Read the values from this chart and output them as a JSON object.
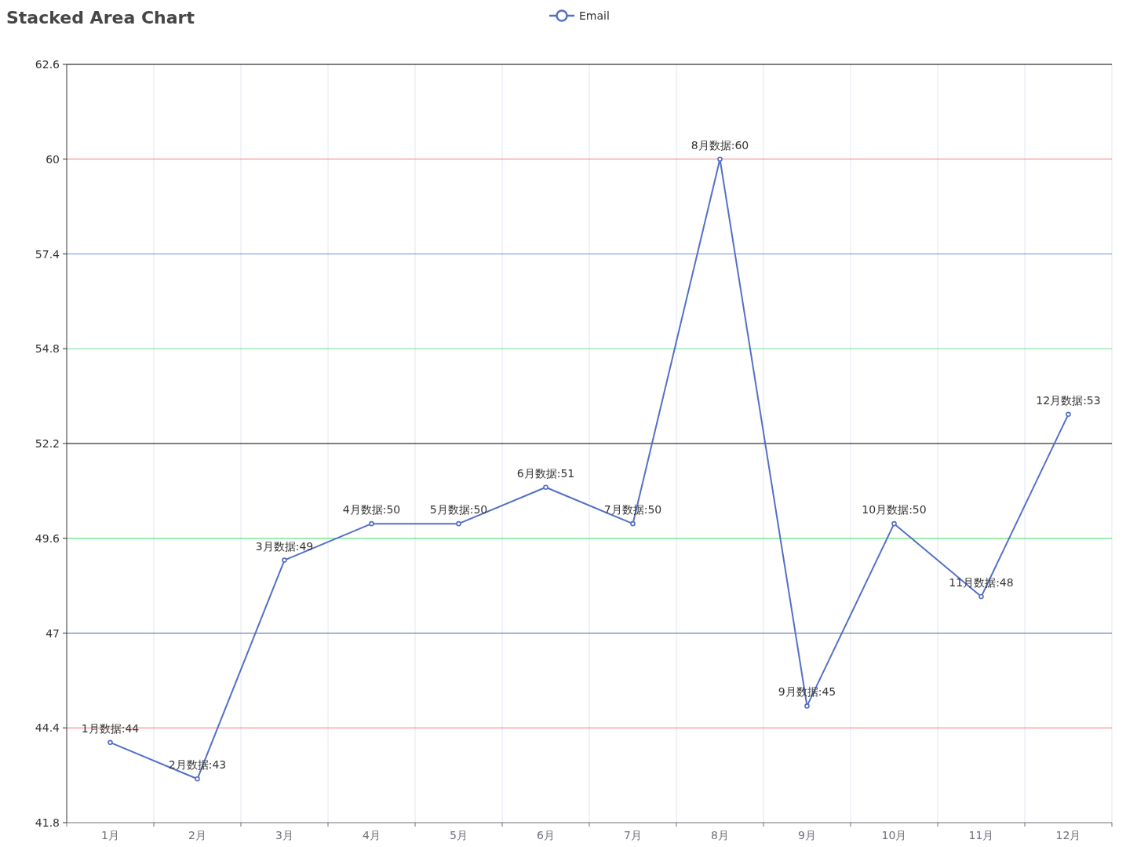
{
  "chart_data": {
    "type": "line",
    "title": "Stacked Area Chart",
    "categories": [
      "1月",
      "2月",
      "3月",
      "4月",
      "5月",
      "6月",
      "7月",
      "8月",
      "9月",
      "10月",
      "11月",
      "12月"
    ],
    "series": [
      {
        "name": "Email",
        "color": "#5470c6",
        "values": [
          44,
          43,
          49,
          50,
          50,
          51,
          50,
          60,
          45,
          50,
          48,
          53
        ],
        "value_labels": [
          "1月数据:44",
          "2月数据:43",
          "3月数据:49",
          "4月数据:50",
          "5月数据:50",
          "6月数据:51",
          "7月数据:50",
          "8月数据:60",
          "9月数据:45",
          "10月数据:50",
          "11月数据:48",
          "12月数据:53"
        ]
      }
    ],
    "ylim": [
      41.8,
      62.6
    ],
    "yticks": [
      41.8,
      44.4,
      47,
      49.6,
      52.2,
      54.8,
      57.4,
      60,
      62.6
    ],
    "ref_lines": [
      {
        "axis": "y",
        "value": 44.4,
        "color": "#ff7b7b"
      },
      {
        "axis": "y",
        "value": 47,
        "color": "#4a68a8"
      },
      {
        "axis": "y",
        "value": 49.6,
        "color": "#40e060"
      },
      {
        "axis": "y",
        "value": 52.2,
        "color": "#000000"
      },
      {
        "axis": "y",
        "value": 54.8,
        "color": "#70e090"
      },
      {
        "axis": "y",
        "value": 57.4,
        "color": "#6e8ee0"
      },
      {
        "axis": "y",
        "value": 60,
        "color": "#ff7b7b"
      },
      {
        "axis": "y",
        "value": 62.6,
        "color": "#000000"
      }
    ],
    "grid": "x",
    "legend": "top",
    "marker": "circle",
    "line_style": "solid"
  }
}
